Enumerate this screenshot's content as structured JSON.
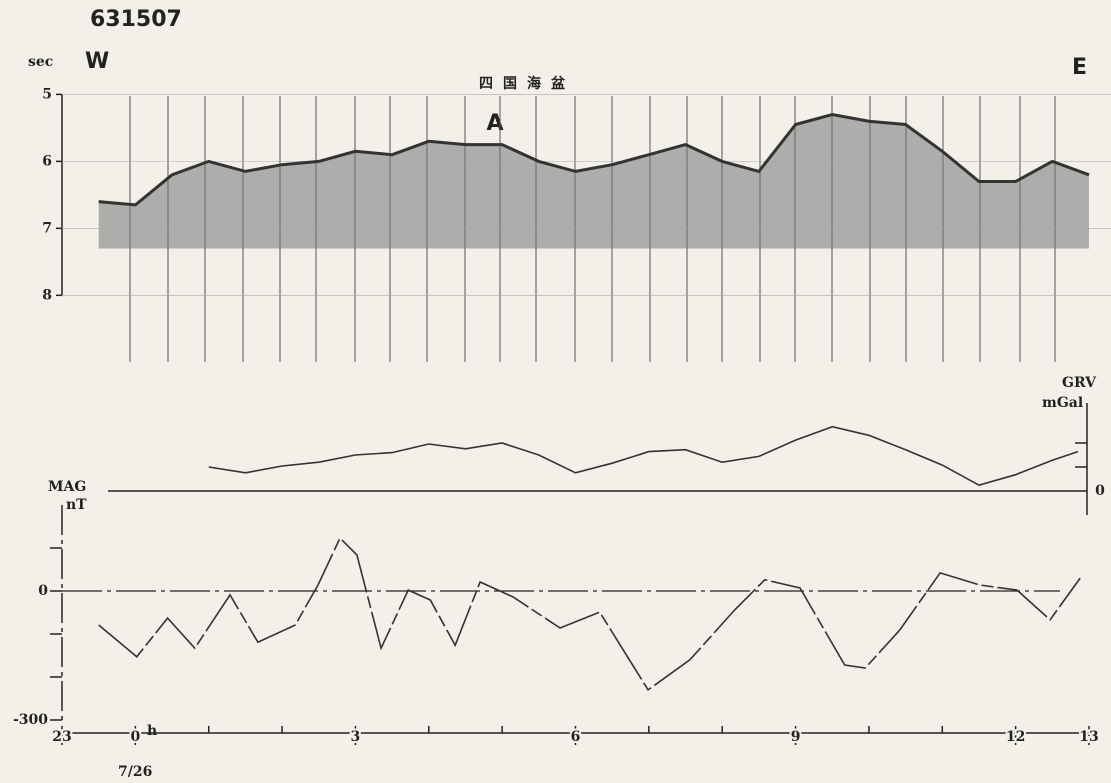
{
  "title": "631507",
  "time_axis": {
    "xlim": [
      23,
      37
    ],
    "xticks": [
      23,
      {
        "value": 24,
        "label": "0"
      },
      {
        "value": 27,
        "label": "3"
      },
      {
        "value": 30,
        "label": "6"
      },
      {
        "value": 33,
        "label": "9"
      },
      {
        "value": 36,
        "label": "12"
      },
      {
        "value": 37,
        "label": "13"
      }
    ],
    "xminor": [
      25,
      26,
      28,
      29,
      31,
      32,
      34,
      35
    ],
    "hour_unit": "h",
    "date": "7/26"
  },
  "chart_data": [
    {
      "type": "line",
      "y_label": "sec",
      "left_label": "W",
      "right_label": "E",
      "annotations": [
        "四国海盆",
        "A"
      ],
      "ylim": [
        4.8,
        9.1
      ],
      "invert_y": true,
      "yticks": [
        5,
        6,
        7,
        8
      ],
      "color": "#333333",
      "x": [
        23.5,
        24,
        24.5,
        25,
        25.5,
        26,
        26.5,
        27,
        27.5,
        28,
        28.5,
        29,
        29.5,
        30,
        30.5,
        31,
        31.5,
        32,
        32.5,
        33,
        33.5,
        34,
        34.5,
        35,
        35.5,
        36,
        36.5,
        37
      ],
      "values": [
        6.6,
        6.65,
        6.2,
        6.0,
        6.15,
        6.05,
        6.0,
        5.85,
        5.9,
        5.7,
        5.75,
        5.75,
        6.0,
        6.15,
        6.05,
        5.9,
        5.75,
        6.0,
        6.15,
        5.45,
        5.3,
        5.4,
        5.45,
        5.85,
        6.3,
        6.3,
        6.0,
        6.2
      ]
    },
    {
      "type": "line",
      "y_label": "GRV",
      "unit": "mGal",
      "ylim": [
        -50,
        100
      ],
      "yticks": [
        0
      ],
      "yminor": [
        25,
        50
      ],
      "color": "#333333",
      "x": [
        25,
        25.5,
        26,
        26.5,
        27,
        27.5,
        28,
        28.5,
        29,
        29.5,
        30,
        30.5,
        31,
        31.5,
        32,
        32.5,
        33,
        33.5,
        34,
        34.5,
        35,
        35.5,
        36,
        36.5,
        36.85
      ],
      "values": [
        25,
        19,
        26,
        30,
        37.5,
        40,
        49,
        44,
        50,
        37.5,
        19,
        29,
        41,
        43,
        30,
        36,
        53,
        67,
        58,
        43,
        27,
        6,
        17,
        32,
        41
      ]
    },
    {
      "type": "line",
      "y_label": "MAG",
      "unit": "nT",
      "ylim": [
        -300,
        200
      ],
      "yticks": [
        0,
        -300
      ],
      "yminor": [
        100,
        -100,
        -200
      ],
      "color": "#333333",
      "x": [
        23.5,
        24.02,
        24.44,
        24.81,
        25.29,
        25.67,
        26.18,
        26.49,
        26.79,
        27.02,
        27.35,
        27.72,
        28.02,
        28.36,
        28.7,
        29.15,
        29.79,
        30.33,
        30.99,
        31.56,
        32.17,
        32.58,
        33.06,
        33.67,
        33.95,
        34.42,
        34.97,
        35.51,
        36.02,
        36.47,
        36.88
      ],
      "values": [
        -79,
        -153,
        -63,
        -133,
        -9,
        -119,
        -79,
        14,
        123,
        84,
        -133,
        2,
        -21,
        -126,
        21,
        -14,
        -86,
        -49,
        -230,
        -160,
        -44,
        26,
        7,
        -172,
        -179,
        -91,
        42,
        14,
        2,
        -67,
        30
      ]
    }
  ]
}
